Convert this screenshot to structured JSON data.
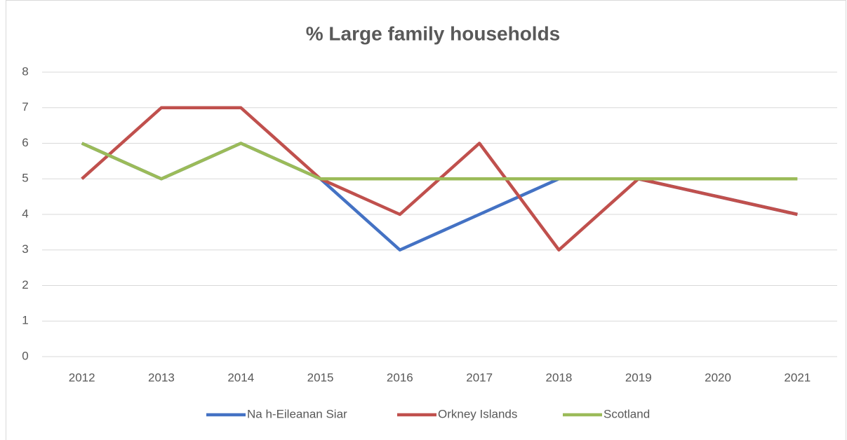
{
  "chart_data": {
    "type": "line",
    "title": "% Large family households",
    "categories": [
      "2012",
      "2013",
      "2014",
      "2015",
      "2016",
      "2017",
      "2018",
      "2019",
      "2020",
      "2021"
    ],
    "series": [
      {
        "name": "Na h-Eileanan Siar",
        "color": "#4472c4",
        "values": [
          6,
          5,
          6,
          5,
          3,
          4,
          5,
          5,
          4.5,
          4
        ]
      },
      {
        "name": "Orkney Islands",
        "color": "#c0504d",
        "values": [
          5,
          7,
          7,
          5,
          4,
          6,
          3,
          5,
          4.5,
          4
        ]
      },
      {
        "name": "Scotland",
        "color": "#9bbb59",
        "values": [
          6,
          5,
          6,
          5,
          5,
          5,
          5,
          5,
          5,
          5
        ]
      }
    ],
    "ylim": [
      0,
      8
    ],
    "yticks": [
      0,
      1,
      2,
      3,
      4,
      5,
      6,
      7,
      8
    ],
    "grid": true,
    "legend": "bottom"
  }
}
